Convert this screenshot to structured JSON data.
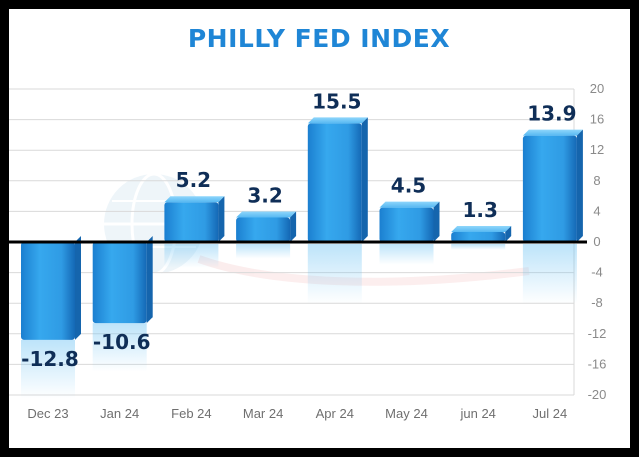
{
  "chart_data": {
    "type": "bar",
    "title": "PHILLY FED INDEX",
    "xlabel": "",
    "ylabel": "",
    "categories": [
      "Dec 23",
      "Jan 24",
      "Feb 24",
      "Mar 24",
      "Apr 24",
      "May 24",
      "jun 24",
      "Jul 24"
    ],
    "values": [
      -12.8,
      -10.6,
      5.2,
      3.2,
      15.5,
      4.5,
      1.3,
      13.9
    ],
    "data_labels": [
      "-12.8",
      "-10.6",
      "5.2",
      "3.2",
      "15.5",
      "4.5",
      "1.3",
      "13.9"
    ],
    "ylim": [
      -20,
      20
    ],
    "yticks": [
      20,
      16,
      12,
      8,
      4,
      0,
      -4,
      -8,
      -12,
      -16,
      -20
    ],
    "ytick_labels": [
      "20",
      "16",
      "12",
      "8",
      "4",
      "0",
      "-4",
      "-8",
      "-12",
      "-16",
      "-20"
    ],
    "grid": true,
    "yaxis_side": "right",
    "bar_color": "#2a9be6",
    "bar_color_light": "#6cc6f7",
    "bar_color_dark": "#1673c4",
    "title_color": "#1f86d6",
    "label_color": "#0f2e57"
  }
}
